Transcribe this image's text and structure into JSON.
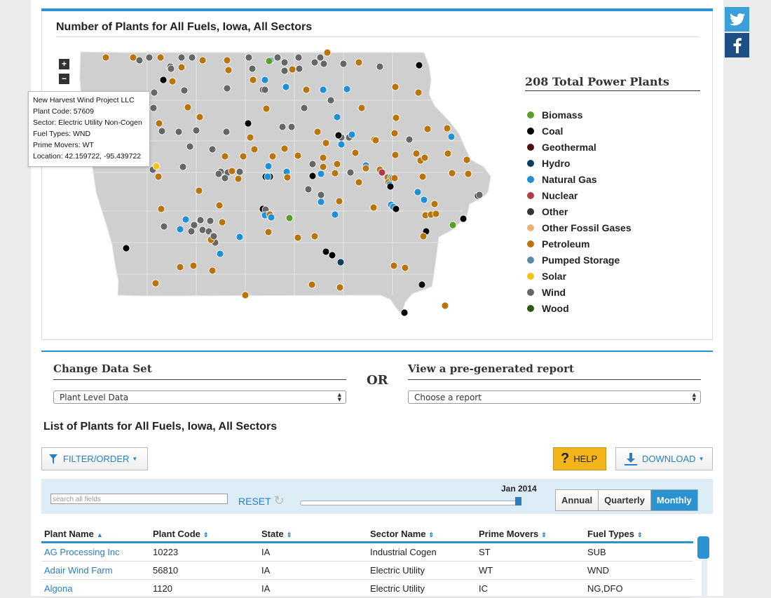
{
  "map": {
    "title": "Number of Plants for All Fuels, Iowa, All Sectors",
    "zoom_in": "+",
    "zoom_out": "−",
    "total_label": "208 Total Power Plants"
  },
  "legend": [
    {
      "name": "Biomass",
      "color": "#5c9e2a"
    },
    {
      "name": "Coal",
      "color": "#000000"
    },
    {
      "name": "Geothermal",
      "color": "#4a1010"
    },
    {
      "name": "Hydro",
      "color": "#0b3d5e"
    },
    {
      "name": "Natural Gas",
      "color": "#1e90d6"
    },
    {
      "name": "Nuclear",
      "color": "#b03a48"
    },
    {
      "name": "Other",
      "color": "#333333"
    },
    {
      "name": "Other Fossil Gases",
      "color": "#e8b47a"
    },
    {
      "name": "Petroleum",
      "color": "#b8750e"
    },
    {
      "name": "Pumped Storage",
      "color": "#5b8aa8"
    },
    {
      "name": "Solar",
      "color": "#f0c419"
    },
    {
      "name": "Wind",
      "color": "#666666"
    },
    {
      "name": "Wood",
      "color": "#2f5514"
    }
  ],
  "tooltip": {
    "name": "New Harvest Wind Project LLC",
    "plant_code": "Plant Code: 57609",
    "sector": "Sector: Electric Utility Non-Cogen",
    "fuel": "Fuel Types: WND",
    "movers": "Prime Movers: WT",
    "location": "Location: 42.159722, -95.439722"
  },
  "data_set": {
    "heading": "Change Data Set",
    "value": "Plant Level Data",
    "or_label": "OR"
  },
  "report": {
    "heading": "View a pre-generated report",
    "placeholder": "Choose a report"
  },
  "list": {
    "title": "List of Plants for All Fuels, Iowa, All Sectors",
    "filter_label": "FILTER/ORDER",
    "help_label": "HELP",
    "download_label": "DOWNLOAD",
    "search_placeholder": "search all fields",
    "reset_label": "RESET",
    "slider_label": "Jan 2014",
    "periods": [
      "Annual",
      "Quarterly",
      "Monthly"
    ]
  },
  "table": {
    "columns": [
      "Plant Name",
      "Plant Code",
      "State",
      "Sector Name",
      "Prime Movers",
      "Fuel Types"
    ],
    "rows": [
      [
        "AG Processing Inc",
        "10223",
        "IA",
        "Industrial Cogen",
        "ST",
        "SUB"
      ],
      [
        "Adair Wind Farm",
        "56810",
        "IA",
        "Electric Utility",
        "WT",
        "WND"
      ],
      [
        "Algona",
        "1120",
        "IA",
        "Electric Utility",
        "IC",
        "NG,DFO"
      ]
    ]
  },
  "colors": {
    "accent": "#2b93d1",
    "map_fill": "#cfcfcf",
    "help_bg": "#f4b51b"
  }
}
